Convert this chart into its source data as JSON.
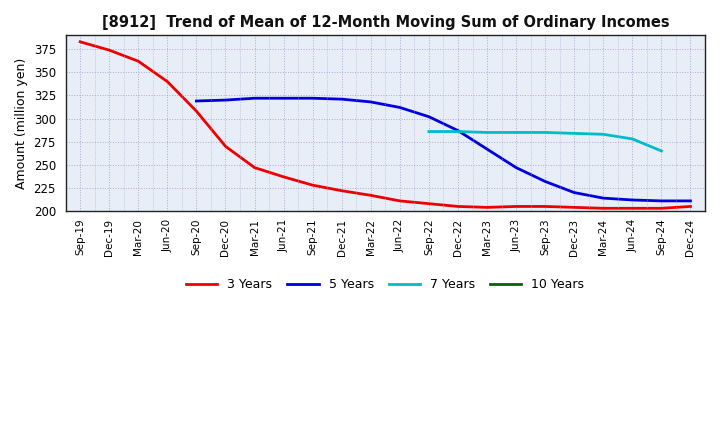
{
  "title": "[8912]  Trend of Mean of 12-Month Moving Sum of Ordinary Incomes",
  "ylabel": "Amount (million yen)",
  "ylim": [
    200,
    390
  ],
  "yticks": [
    200,
    225,
    250,
    275,
    300,
    325,
    350,
    375
  ],
  "background_color": "#ffffff",
  "plot_bg_color": "#e8eef8",
  "grid_color": "#aaaacc",
  "line_colors": {
    "3yr": "#ee0000",
    "5yr": "#0000dd",
    "7yr": "#00bbcc",
    "10yr": "#006600"
  },
  "x_labels": [
    "Sep-19",
    "Dec-19",
    "Mar-20",
    "Jun-20",
    "Sep-20",
    "Dec-20",
    "Mar-21",
    "Jun-21",
    "Sep-21",
    "Dec-21",
    "Mar-22",
    "Jun-22",
    "Sep-22",
    "Dec-22",
    "Mar-23",
    "Jun-23",
    "Sep-23",
    "Dec-23",
    "Mar-24",
    "Jun-24",
    "Sep-24",
    "Dec-24"
  ],
  "series_3yr": [
    383,
    374,
    362,
    340,
    308,
    270,
    247,
    237,
    228,
    222,
    217,
    211,
    208,
    205,
    204,
    205,
    205,
    204,
    203,
    203,
    203,
    205
  ],
  "series_5yr": [
    null,
    null,
    null,
    null,
    319,
    320,
    322,
    322,
    322,
    321,
    318,
    312,
    302,
    287,
    267,
    247,
    232,
    220,
    214,
    212,
    211,
    211
  ],
  "series_7yr": [
    null,
    null,
    null,
    null,
    null,
    null,
    null,
    null,
    null,
    null,
    null,
    null,
    286,
    286,
    285,
    285,
    285,
    284,
    283,
    278,
    265,
    null
  ],
  "series_10yr": [
    null,
    null,
    null,
    null,
    null,
    null,
    null,
    null,
    null,
    null,
    null,
    null,
    null,
    null,
    null,
    null,
    null,
    null,
    null,
    null,
    null,
    null
  ],
  "legend_labels": [
    "3 Years",
    "5 Years",
    "7 Years",
    "10 Years"
  ],
  "linewidth": 2.0
}
